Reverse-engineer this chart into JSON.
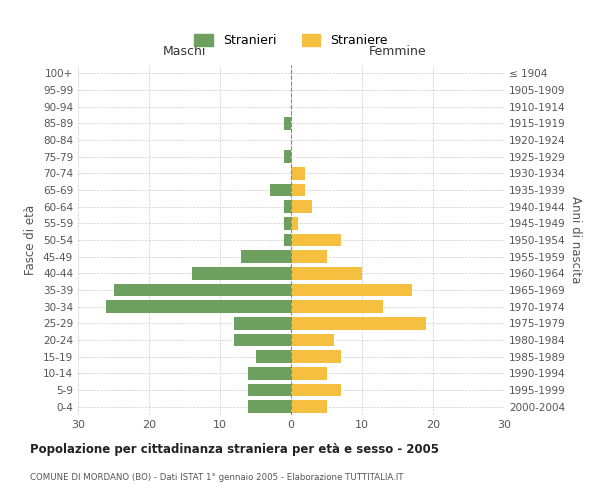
{
  "age_groups": [
    "100+",
    "95-99",
    "90-94",
    "85-89",
    "80-84",
    "75-79",
    "70-74",
    "65-69",
    "60-64",
    "55-59",
    "50-54",
    "45-49",
    "40-44",
    "35-39",
    "30-34",
    "25-29",
    "20-24",
    "15-19",
    "10-14",
    "5-9",
    "0-4"
  ],
  "birth_years": [
    "≤ 1904",
    "1905-1909",
    "1910-1914",
    "1915-1919",
    "1920-1924",
    "1925-1929",
    "1930-1934",
    "1935-1939",
    "1940-1944",
    "1945-1949",
    "1950-1954",
    "1955-1959",
    "1960-1964",
    "1965-1969",
    "1970-1974",
    "1975-1979",
    "1980-1984",
    "1985-1989",
    "1990-1994",
    "1995-1999",
    "2000-2004"
  ],
  "stranieri": [
    0,
    0,
    0,
    1,
    0,
    1,
    0,
    3,
    1,
    1,
    1,
    7,
    14,
    25,
    26,
    8,
    8,
    5,
    6,
    6,
    6
  ],
  "straniere": [
    0,
    0,
    0,
    0,
    0,
    0,
    2,
    2,
    3,
    1,
    7,
    5,
    10,
    17,
    13,
    19,
    6,
    7,
    5,
    7,
    5
  ],
  "stranieri_color": "#6d9f5e",
  "straniere_color": "#f5c040",
  "xlim": 30,
  "xlabel_maschi": "Maschi",
  "xlabel_femmine": "Femmine",
  "ylabel_left": "Fasce di età",
  "ylabel_right": "Anni di nascita",
  "title": "Popolazione per cittadinanza straniera per età e sesso - 2005",
  "subtitle": "COMUNE DI MORDANO (BO) - Dati ISTAT 1° gennaio 2005 - Elaborazione TUTTITALIA.IT",
  "legend_stranieri": "Stranieri",
  "legend_straniere": "Straniere",
  "bg_color": "#ffffff",
  "grid_color": "#cccccc",
  "tick_label_color": "#555555",
  "axis_label_color": "#555555"
}
